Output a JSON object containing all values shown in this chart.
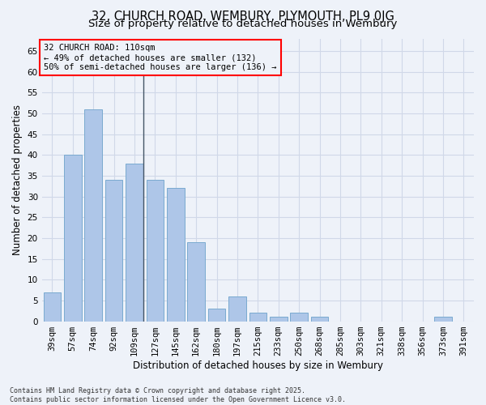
{
  "title_line1": "32, CHURCH ROAD, WEMBURY, PLYMOUTH, PL9 0JG",
  "title_line2": "Size of property relative to detached houses in Wembury",
  "xlabel": "Distribution of detached houses by size in Wembury",
  "ylabel": "Number of detached properties",
  "categories": [
    "39sqm",
    "57sqm",
    "74sqm",
    "92sqm",
    "109sqm",
    "127sqm",
    "145sqm",
    "162sqm",
    "180sqm",
    "197sqm",
    "215sqm",
    "233sqm",
    "250sqm",
    "268sqm",
    "285sqm",
    "303sqm",
    "321sqm",
    "338sqm",
    "356sqm",
    "373sqm",
    "391sqm"
  ],
  "values": [
    7,
    40,
    51,
    34,
    38,
    34,
    32,
    19,
    3,
    6,
    2,
    1,
    2,
    1,
    0,
    0,
    0,
    0,
    0,
    1,
    0
  ],
  "bar_color": "#aec6e8",
  "bar_edge_color": "#7aaad0",
  "grid_color": "#d0d8e8",
  "background_color": "#eef2f9",
  "annotation_line1": "32 CHURCH ROAD: 110sqm",
  "annotation_line2": "← 49% of detached houses are smaller (132)",
  "annotation_line3": "50% of semi-detached houses are larger (136) →",
  "ylim": [
    0,
    68
  ],
  "yticks": [
    0,
    5,
    10,
    15,
    20,
    25,
    30,
    35,
    40,
    45,
    50,
    55,
    60,
    65
  ],
  "footnote_line1": "Contains HM Land Registry data © Crown copyright and database right 2025.",
  "footnote_line2": "Contains public sector information licensed under the Open Government Licence v3.0.",
  "title_fontsize": 10.5,
  "subtitle_fontsize": 9.5,
  "axis_label_fontsize": 8.5,
  "tick_fontsize": 7.5,
  "annotation_fontsize": 7.5,
  "footnote_fontsize": 6.0
}
